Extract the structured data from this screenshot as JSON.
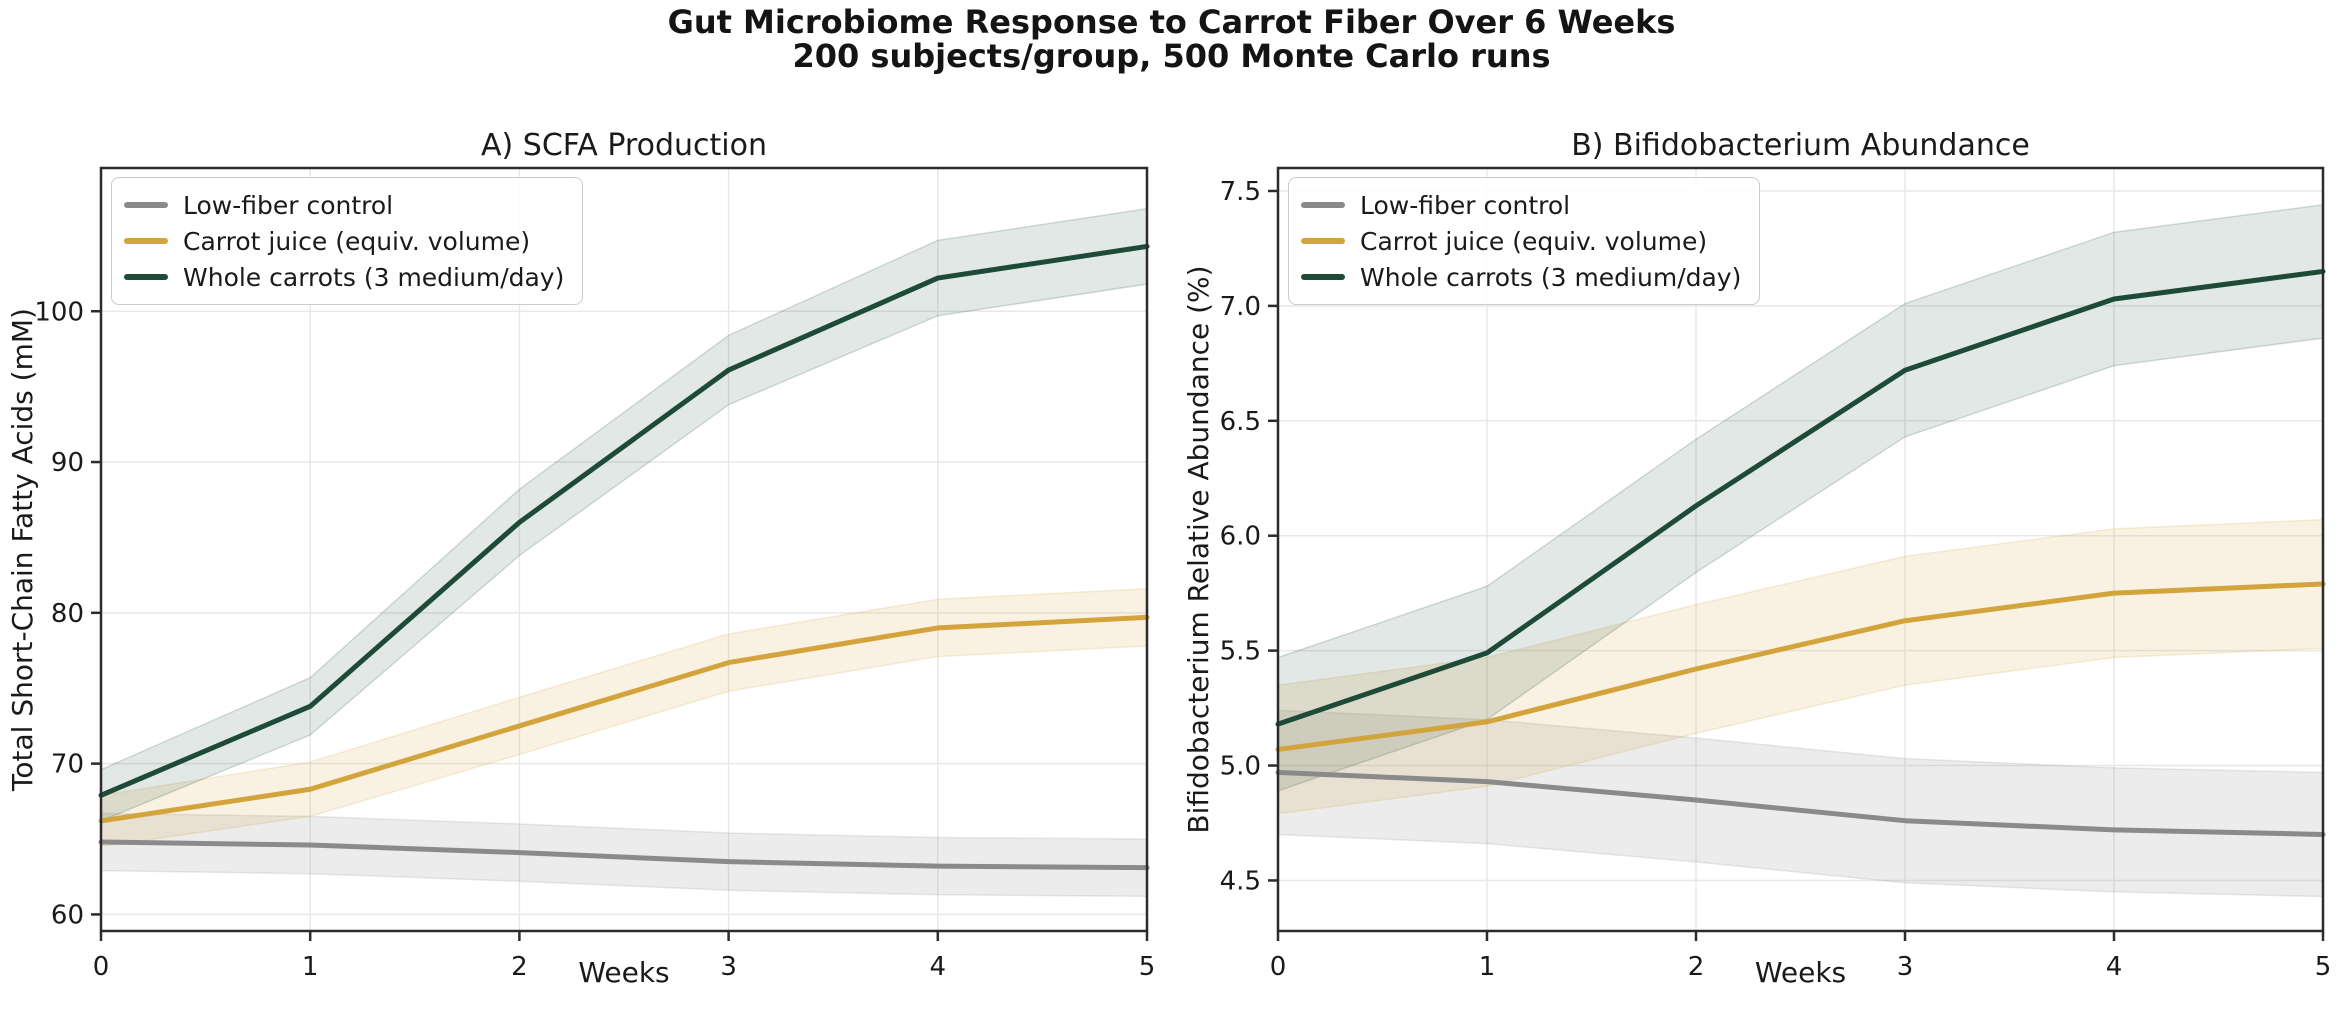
{
  "figure": {
    "title_line1": "Gut Microbiome Response to Carrot Fiber Over 6 Weeks",
    "title_line2": "200 subjects/group, 500 Monte Carlo runs"
  },
  "colors": {
    "control": "#8a8a8a",
    "juice": "#d4a43c",
    "whole": "#1e4b38",
    "spine": "#2b2b2b",
    "grid": "#e8e8e8",
    "text": "#1a1a1a"
  },
  "chart_data": [
    {
      "type": "line",
      "title": "A) SCFA Production",
      "xlabel": "Weeks",
      "ylabel": "Total Short-Chain Fatty Acids (mM)",
      "grid": true,
      "legend_position": "upper-left",
      "xlim": [
        0,
        5
      ],
      "ylim": [
        58.9,
        109.5
      ],
      "x": [
        0,
        1,
        2,
        3,
        4,
        5
      ],
      "xticks": [
        0,
        1,
        2,
        3,
        4,
        5
      ],
      "xtick_labels": [
        "0",
        "1",
        "2",
        "3",
        "4",
        "5"
      ],
      "yticks": [
        60,
        70,
        80,
        90,
        100
      ],
      "ytick_labels": [
        "60",
        "70",
        "80",
        "90",
        "100"
      ],
      "series": [
        {
          "name": "Low-fiber control",
          "color": "#8a8a8a",
          "band_opacity": 0.16,
          "values": [
            64.8,
            64.6,
            64.1,
            63.5,
            63.2,
            63.1
          ],
          "band_lower": [
            62.9,
            62.7,
            62.2,
            61.6,
            61.3,
            61.2
          ],
          "band_upper": [
            66.7,
            66.5,
            66.0,
            65.4,
            65.1,
            65.0
          ]
        },
        {
          "name": "Carrot juice (equiv. volume)",
          "color": "#d4a43c",
          "band_opacity": 0.15,
          "values": [
            66.2,
            68.3,
            72.5,
            76.7,
            79.0,
            79.7
          ],
          "band_lower": [
            64.5,
            66.5,
            70.6,
            74.8,
            77.1,
            77.8
          ],
          "band_upper": [
            67.9,
            70.1,
            74.4,
            78.6,
            80.9,
            81.6
          ]
        },
        {
          "name": "Whole carrots (3 medium/day)",
          "color": "#1e4b38",
          "band_opacity": 0.13,
          "values": [
            67.9,
            73.8,
            86.0,
            96.1,
            102.2,
            104.3
          ],
          "band_lower": [
            66.2,
            71.9,
            83.8,
            93.8,
            99.7,
            101.8
          ],
          "band_upper": [
            69.6,
            75.7,
            88.2,
            98.4,
            104.7,
            106.8
          ]
        }
      ]
    },
    {
      "type": "line",
      "title": "B) Bifidobacterium Abundance",
      "xlabel": "Weeks",
      "ylabel": "Bifidobacterium Relative Abundance (%)",
      "grid": true,
      "legend_position": "upper-left",
      "xlim": [
        0,
        5
      ],
      "ylim": [
        4.28,
        7.6
      ],
      "x": [
        0,
        1,
        2,
        3,
        4,
        5
      ],
      "xticks": [
        0,
        1,
        2,
        3,
        4,
        5
      ],
      "xtick_labels": [
        "0",
        "1",
        "2",
        "3",
        "4",
        "5"
      ],
      "yticks": [
        4.5,
        5.0,
        5.5,
        6.0,
        6.5,
        7.0,
        7.5
      ],
      "ytick_labels": [
        "4.5",
        "5.0",
        "5.5",
        "6.0",
        "6.5",
        "7.0",
        "7.5"
      ],
      "series": [
        {
          "name": "Low-fiber control",
          "color": "#8a8a8a",
          "band_opacity": 0.16,
          "values": [
            4.97,
            4.93,
            4.85,
            4.76,
            4.72,
            4.7
          ],
          "band_lower": [
            4.7,
            4.66,
            4.58,
            4.49,
            4.45,
            4.43
          ],
          "band_upper": [
            5.24,
            5.2,
            5.12,
            5.03,
            4.99,
            4.97
          ]
        },
        {
          "name": "Carrot juice (equiv. volume)",
          "color": "#d4a43c",
          "band_opacity": 0.15,
          "values": [
            5.07,
            5.19,
            5.42,
            5.63,
            5.75,
            5.79
          ],
          "band_lower": [
            4.79,
            4.91,
            5.14,
            5.35,
            5.47,
            5.51
          ],
          "band_upper": [
            5.35,
            5.47,
            5.7,
            5.91,
            6.03,
            6.07
          ]
        },
        {
          "name": "Whole carrots (3 medium/day)",
          "color": "#1e4b38",
          "band_opacity": 0.13,
          "values": [
            5.18,
            5.49,
            6.13,
            6.72,
            7.03,
            7.15
          ],
          "band_lower": [
            4.89,
            5.2,
            5.84,
            6.43,
            6.74,
            6.86
          ],
          "band_upper": [
            5.47,
            5.78,
            6.42,
            7.01,
            7.32,
            7.44
          ]
        }
      ]
    }
  ]
}
